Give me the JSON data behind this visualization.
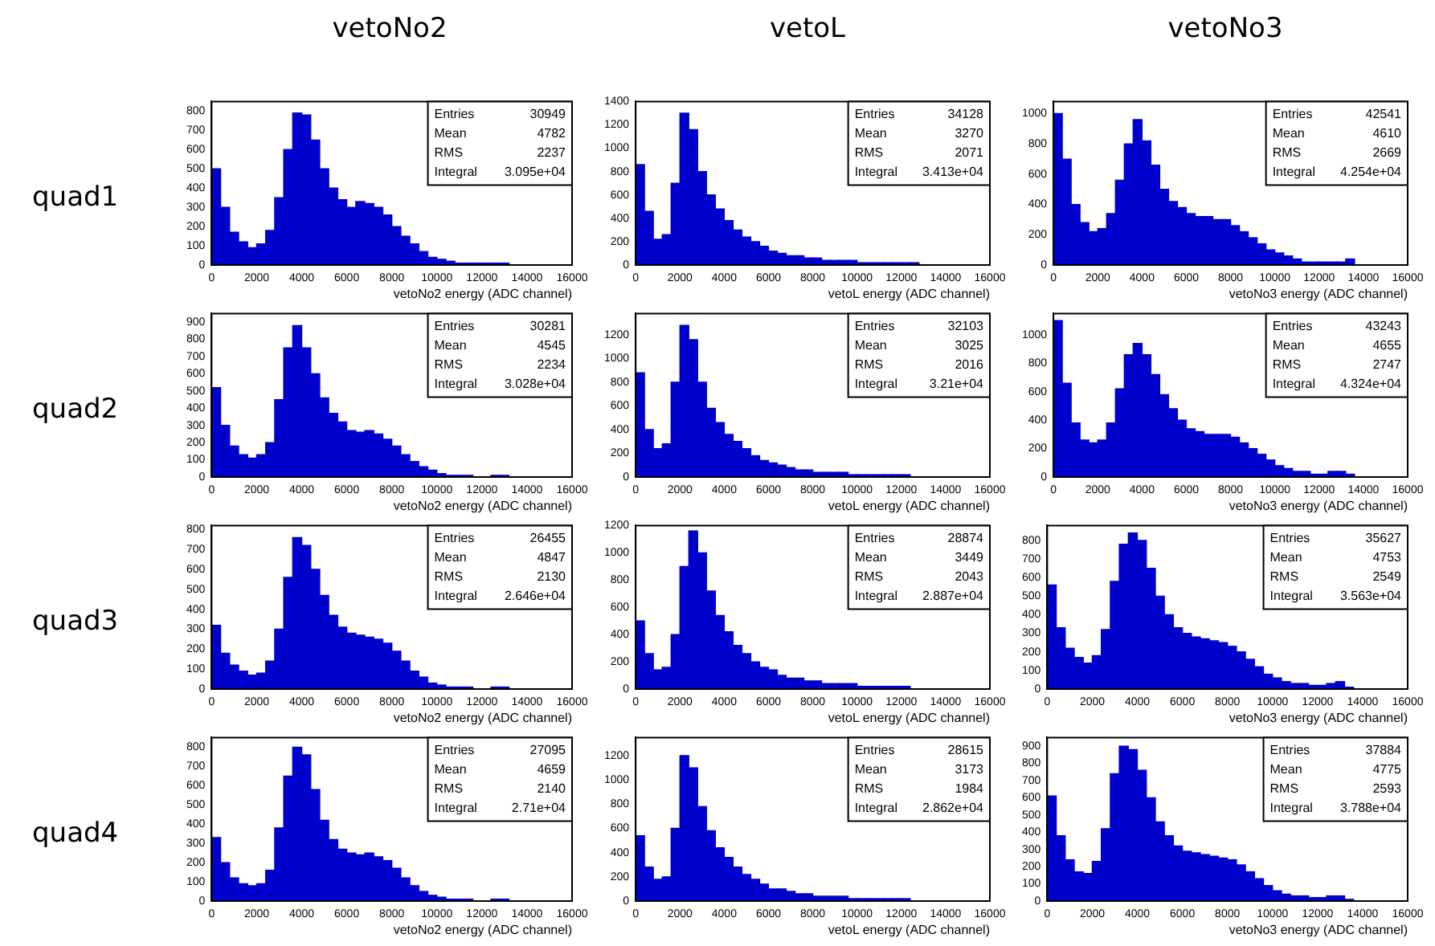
{
  "chart_data": [
    {
      "type": "histogram",
      "title": "vetoNo2",
      "ylabel": "quad1",
      "xlabel": "vetoNo2 energy (ADC channel)",
      "color": "#0000cc",
      "xlim": [
        0,
        16000
      ],
      "xticks": [
        0,
        2000,
        4000,
        6000,
        8000,
        10000,
        12000,
        14000,
        16000
      ],
      "ylim": [
        0,
        850
      ],
      "yticks": [
        0,
        100,
        200,
        300,
        400,
        500,
        600,
        700,
        800
      ],
      "grid": false,
      "legend": false,
      "annotations": [
        "Entries",
        "30949",
        "Mean",
        "4782",
        "RMS",
        "2237",
        "Integral",
        "3.095e+04"
      ],
      "bins": [
        0,
        400,
        800,
        1200,
        1600,
        2000,
        2400,
        2800,
        3200,
        3600,
        4000,
        4400,
        4800,
        5200,
        5600,
        6000,
        6400,
        6800,
        7200,
        7600,
        8000,
        8400,
        8800,
        9200,
        9600,
        10000,
        10400,
        10800,
        11200,
        11600,
        12000,
        12400,
        12800,
        13200,
        13600,
        14000
      ],
      "values": [
        500,
        300,
        170,
        120,
        90,
        110,
        180,
        350,
        600,
        790,
        780,
        650,
        500,
        400,
        340,
        300,
        330,
        320,
        300,
        260,
        200,
        150,
        110,
        70,
        40,
        30,
        20,
        10,
        10,
        10,
        10,
        10,
        10,
        0,
        0
      ]
    },
    {
      "type": "histogram",
      "title": "vetoL",
      "xlabel": "vetoL energy (ADC channel)",
      "color": "#0000cc",
      "xlim": [
        0,
        16000
      ],
      "xticks": [
        0,
        2000,
        4000,
        6000,
        8000,
        10000,
        12000,
        14000,
        16000
      ],
      "ylim": [
        0,
        1400
      ],
      "yticks": [
        0,
        200,
        400,
        600,
        800,
        1000,
        1200,
        1400
      ],
      "grid": false,
      "legend": false,
      "annotations": [
        "Entries",
        "34128",
        "Mean",
        "3270",
        "RMS",
        "2071",
        "Integral",
        "3.413e+04"
      ],
      "bins": [
        0,
        400,
        800,
        1200,
        1600,
        2000,
        2400,
        2800,
        3200,
        3600,
        4000,
        4400,
        4800,
        5200,
        5600,
        6000,
        6400,
        6800,
        7200,
        7600,
        8000,
        8400,
        8800,
        9200,
        9600,
        10000,
        10400,
        10800,
        11200,
        11600,
        12000,
        12400,
        12800,
        13200,
        13600,
        14000
      ],
      "values": [
        860,
        460,
        220,
        260,
        700,
        1300,
        1160,
        800,
        600,
        480,
        380,
        300,
        240,
        200,
        160,
        120,
        100,
        80,
        80,
        60,
        60,
        40,
        40,
        40,
        40,
        20,
        20,
        20,
        20,
        20,
        20,
        20,
        0,
        0,
        0
      ]
    },
    {
      "type": "histogram",
      "title": "vetoNo3",
      "xlabel": "vetoNo3 energy (ADC channel)",
      "color": "#0000cc",
      "xlim": [
        0,
        16000
      ],
      "xticks": [
        0,
        2000,
        4000,
        6000,
        8000,
        10000,
        12000,
        14000,
        16000
      ],
      "ylim": [
        0,
        1080
      ],
      "yticks": [
        0,
        200,
        400,
        600,
        800,
        1000
      ],
      "grid": false,
      "legend": false,
      "annotations": [
        "Entries",
        "42541",
        "Mean",
        "4610",
        "RMS",
        "2669",
        "Integral",
        "4.254e+04"
      ],
      "bins": [
        0,
        400,
        800,
        1200,
        1600,
        2000,
        2400,
        2800,
        3200,
        3600,
        4000,
        4400,
        4800,
        5200,
        5600,
        6000,
        6400,
        6800,
        7200,
        7600,
        8000,
        8400,
        8800,
        9200,
        9600,
        10000,
        10400,
        10800,
        11200,
        11600,
        12000,
        12400,
        12800,
        13200,
        13600,
        14000
      ],
      "values": [
        1000,
        700,
        400,
        280,
        220,
        240,
        340,
        560,
        800,
        960,
        820,
        660,
        500,
        420,
        380,
        340,
        320,
        320,
        300,
        300,
        260,
        220,
        180,
        140,
        100,
        80,
        60,
        40,
        20,
        20,
        20,
        20,
        20,
        40,
        0
      ]
    },
    {
      "type": "histogram",
      "ylabel": "quad2",
      "xlabel": "vetoNo2 energy (ADC channel)",
      "color": "#0000cc",
      "xlim": [
        0,
        16000
      ],
      "xticks": [
        0,
        2000,
        4000,
        6000,
        8000,
        10000,
        12000,
        14000,
        16000
      ],
      "ylim": [
        0,
        950
      ],
      "yticks": [
        0,
        100,
        200,
        300,
        400,
        500,
        600,
        700,
        800,
        900
      ],
      "grid": false,
      "legend": false,
      "annotations": [
        "Entries",
        "30281",
        "Mean",
        "4545",
        "RMS",
        "2234",
        "Integral",
        "3.028e+04"
      ],
      "bins": [
        0,
        400,
        800,
        1200,
        1600,
        2000,
        2400,
        2800,
        3200,
        3600,
        4000,
        4400,
        4800,
        5200,
        5600,
        6000,
        6400,
        6800,
        7200,
        7600,
        8000,
        8400,
        8800,
        9200,
        9600,
        10000,
        10400,
        10800,
        11200,
        11600,
        12000,
        12400,
        12800,
        13200,
        13600,
        14000
      ],
      "values": [
        520,
        300,
        180,
        130,
        110,
        130,
        200,
        450,
        750,
        880,
        750,
        600,
        460,
        370,
        320,
        270,
        260,
        270,
        250,
        220,
        180,
        130,
        90,
        60,
        40,
        20,
        10,
        10,
        10,
        0,
        0,
        10,
        10,
        0,
        0
      ]
    },
    {
      "type": "histogram",
      "xlabel": "vetoL energy (ADC channel)",
      "color": "#0000cc",
      "xlim": [
        0,
        16000
      ],
      "xticks": [
        0,
        2000,
        4000,
        6000,
        8000,
        10000,
        12000,
        14000,
        16000
      ],
      "ylim": [
        0,
        1380
      ],
      "yticks": [
        0,
        200,
        400,
        600,
        800,
        1000,
        1200
      ],
      "grid": false,
      "legend": false,
      "annotations": [
        "Entries",
        "32103",
        "Mean",
        "3025",
        "RMS",
        "2016",
        "Integral",
        "3.21e+04"
      ],
      "bins": [
        0,
        400,
        800,
        1200,
        1600,
        2000,
        2400,
        2800,
        3200,
        3600,
        4000,
        4400,
        4800,
        5200,
        5600,
        6000,
        6400,
        6800,
        7200,
        7600,
        8000,
        8400,
        8800,
        9200,
        9600,
        10000,
        10400,
        10800,
        11200,
        11600,
        12000,
        12400,
        12800,
        13200,
        13600,
        14000
      ],
      "values": [
        880,
        400,
        240,
        280,
        800,
        1280,
        1160,
        800,
        580,
        460,
        360,
        300,
        240,
        180,
        140,
        120,
        100,
        80,
        60,
        60,
        40,
        40,
        40,
        40,
        20,
        20,
        20,
        20,
        20,
        20,
        20,
        0,
        0,
        0,
        0
      ]
    },
    {
      "type": "histogram",
      "xlabel": "vetoNo3 energy (ADC channel)",
      "color": "#0000cc",
      "xlim": [
        0,
        16000
      ],
      "xticks": [
        0,
        2000,
        4000,
        6000,
        8000,
        10000,
        12000,
        14000,
        16000
      ],
      "ylim": [
        0,
        1150
      ],
      "yticks": [
        0,
        200,
        400,
        600,
        800,
        1000
      ],
      "grid": false,
      "legend": false,
      "annotations": [
        "Entries",
        "43243",
        "Mean",
        "4655",
        "RMS",
        "2747",
        "Integral",
        "4.324e+04"
      ],
      "bins": [
        0,
        400,
        800,
        1200,
        1600,
        2000,
        2400,
        2800,
        3200,
        3600,
        4000,
        4400,
        4800,
        5200,
        5600,
        6000,
        6400,
        6800,
        7200,
        7600,
        8000,
        8400,
        8800,
        9200,
        9600,
        10000,
        10400,
        10800,
        11200,
        11600,
        12000,
        12400,
        12800,
        13200,
        13600,
        14000
      ],
      "values": [
        1100,
        660,
        380,
        260,
        240,
        260,
        380,
        620,
        860,
        940,
        860,
        720,
        580,
        480,
        400,
        340,
        320,
        300,
        300,
        300,
        280,
        240,
        200,
        160,
        120,
        80,
        60,
        40,
        40,
        20,
        20,
        40,
        40,
        20,
        0
      ]
    },
    {
      "type": "histogram",
      "ylabel": "quad3",
      "xlabel": "vetoNo2 energy (ADC channel)",
      "color": "#0000cc",
      "xlim": [
        0,
        16000
      ],
      "xticks": [
        0,
        2000,
        4000,
        6000,
        8000,
        10000,
        12000,
        14000,
        16000
      ],
      "ylim": [
        0,
        820
      ],
      "yticks": [
        0,
        100,
        200,
        300,
        400,
        500,
        600,
        700,
        800
      ],
      "grid": false,
      "legend": false,
      "annotations": [
        "Entries",
        "26455",
        "Mean",
        "4847",
        "RMS",
        "2130",
        "Integral",
        "2.646e+04"
      ],
      "bins": [
        0,
        400,
        800,
        1200,
        1600,
        2000,
        2400,
        2800,
        3200,
        3600,
        4000,
        4400,
        4800,
        5200,
        5600,
        6000,
        6400,
        6800,
        7200,
        7600,
        8000,
        8400,
        8800,
        9200,
        9600,
        10000,
        10400,
        10800,
        11200,
        11600,
        12000,
        12400,
        12800,
        13200,
        13600,
        14000
      ],
      "values": [
        320,
        180,
        120,
        90,
        70,
        80,
        140,
        300,
        560,
        760,
        720,
        600,
        470,
        370,
        310,
        280,
        270,
        260,
        250,
        230,
        190,
        140,
        90,
        60,
        30,
        20,
        10,
        10,
        10,
        0,
        0,
        10,
        10,
        0,
        0
      ]
    },
    {
      "type": "histogram",
      "xlabel": "vetoL energy (ADC channel)",
      "color": "#0000cc",
      "xlim": [
        0,
        16000
      ],
      "xticks": [
        0,
        2000,
        4000,
        6000,
        8000,
        10000,
        12000,
        14000,
        16000
      ],
      "ylim": [
        0,
        1200
      ],
      "yticks": [
        0,
        200,
        400,
        600,
        800,
        1000,
        1200
      ],
      "grid": false,
      "legend": false,
      "annotations": [
        "Entries",
        "28874",
        "Mean",
        "3449",
        "RMS",
        "2043",
        "Integral",
        "2.887e+04"
      ],
      "bins": [
        0,
        400,
        800,
        1200,
        1600,
        2000,
        2400,
        2800,
        3200,
        3600,
        4000,
        4400,
        4800,
        5200,
        5600,
        6000,
        6400,
        6800,
        7200,
        7600,
        8000,
        8400,
        8800,
        9200,
        9600,
        10000,
        10400,
        10800,
        11200,
        11600,
        12000,
        12400,
        12800,
        13200,
        13600,
        14000
      ],
      "values": [
        500,
        260,
        140,
        160,
        400,
        900,
        1160,
        1000,
        720,
        540,
        420,
        320,
        260,
        200,
        160,
        140,
        100,
        80,
        80,
        60,
        60,
        40,
        40,
        40,
        40,
        20,
        20,
        20,
        20,
        20,
        20,
        0,
        0,
        0,
        0
      ]
    },
    {
      "type": "histogram",
      "xlabel": "vetoNo3 energy (ADC channel)",
      "color": "#0000cc",
      "xlim": [
        0,
        16000
      ],
      "xticks": [
        0,
        2000,
        4000,
        6000,
        8000,
        10000,
        12000,
        14000,
        16000
      ],
      "ylim": [
        0,
        880
      ],
      "yticks": [
        0,
        100,
        200,
        300,
        400,
        500,
        600,
        700,
        800
      ],
      "grid": false,
      "legend": false,
      "annotations": [
        "Entries",
        "35627",
        "Mean",
        "4753",
        "RMS",
        "2549",
        "Integral",
        "3.563e+04"
      ],
      "bins": [
        0,
        400,
        800,
        1200,
        1600,
        2000,
        2400,
        2800,
        3200,
        3600,
        4000,
        4400,
        4800,
        5200,
        5600,
        6000,
        6400,
        6800,
        7200,
        7600,
        8000,
        8400,
        8800,
        9200,
        9600,
        10000,
        10400,
        10800,
        11200,
        11600,
        12000,
        12400,
        12800,
        13200,
        13600,
        14000
      ],
      "values": [
        560,
        330,
        220,
        170,
        140,
        180,
        320,
        580,
        780,
        840,
        800,
        650,
        500,
        400,
        330,
        300,
        280,
        270,
        260,
        250,
        230,
        200,
        160,
        120,
        80,
        60,
        40,
        30,
        30,
        20,
        20,
        30,
        40,
        10,
        0
      ]
    },
    {
      "type": "histogram",
      "ylabel": "quad4",
      "xlabel": "vetoNo2 energy (ADC channel)",
      "color": "#0000cc",
      "xlim": [
        0,
        16000
      ],
      "xticks": [
        0,
        2000,
        4000,
        6000,
        8000,
        10000,
        12000,
        14000,
        16000
      ],
      "ylim": [
        0,
        850
      ],
      "yticks": [
        0,
        100,
        200,
        300,
        400,
        500,
        600,
        700,
        800
      ],
      "grid": false,
      "legend": false,
      "annotations": [
        "Entries",
        "27095",
        "Mean",
        "4659",
        "RMS",
        "2140",
        "Integral",
        "2.71e+04"
      ],
      "bins": [
        0,
        400,
        800,
        1200,
        1600,
        2000,
        2400,
        2800,
        3200,
        3600,
        4000,
        4400,
        4800,
        5200,
        5600,
        6000,
        6400,
        6800,
        7200,
        7600,
        8000,
        8400,
        8800,
        9200,
        9600,
        10000,
        10400,
        10800,
        11200,
        11600,
        12000,
        12400,
        12800,
        13200,
        13600,
        14000
      ],
      "values": [
        330,
        200,
        120,
        90,
        80,
        90,
        160,
        380,
        650,
        800,
        760,
        580,
        420,
        320,
        270,
        250,
        240,
        250,
        230,
        210,
        170,
        120,
        80,
        50,
        30,
        20,
        10,
        10,
        10,
        0,
        0,
        10,
        10,
        0,
        0
      ]
    },
    {
      "type": "histogram",
      "xlabel": "vetoL energy (ADC channel)",
      "color": "#0000cc",
      "xlim": [
        0,
        16000
      ],
      "xticks": [
        0,
        2000,
        4000,
        6000,
        8000,
        10000,
        12000,
        14000,
        16000
      ],
      "ylim": [
        0,
        1350
      ],
      "yticks": [
        0,
        200,
        400,
        600,
        800,
        1000,
        1200
      ],
      "grid": false,
      "legend": false,
      "annotations": [
        "Entries",
        "28615",
        "Mean",
        "3173",
        "RMS",
        "1984",
        "Integral",
        "2.862e+04"
      ],
      "bins": [
        0,
        400,
        800,
        1200,
        1600,
        2000,
        2400,
        2800,
        3200,
        3600,
        4000,
        4400,
        4800,
        5200,
        5600,
        6000,
        6400,
        6800,
        7200,
        7600,
        8000,
        8400,
        8800,
        9200,
        9600,
        10000,
        10400,
        10800,
        11200,
        11600,
        12000,
        12400,
        12800,
        13200,
        13600,
        14000
      ],
      "values": [
        540,
        280,
        180,
        200,
        600,
        1200,
        1100,
        780,
        580,
        440,
        360,
        280,
        220,
        180,
        140,
        100,
        100,
        80,
        60,
        60,
        40,
        40,
        40,
        40,
        20,
        20,
        20,
        20,
        20,
        20,
        20,
        0,
        0,
        0,
        0
      ]
    },
    {
      "type": "histogram",
      "xlabel": "vetoNo3 energy (ADC channel)",
      "color": "#0000cc",
      "xlim": [
        0,
        16000
      ],
      "xticks": [
        0,
        2000,
        4000,
        6000,
        8000,
        10000,
        12000,
        14000,
        16000
      ],
      "ylim": [
        0,
        950
      ],
      "yticks": [
        0,
        100,
        200,
        300,
        400,
        500,
        600,
        700,
        800,
        900
      ],
      "grid": false,
      "legend": false,
      "annotations": [
        "Entries",
        "37884",
        "Mean",
        "4775",
        "RMS",
        "2593",
        "Integral",
        "3.788e+04"
      ],
      "bins": [
        0,
        400,
        800,
        1200,
        1600,
        2000,
        2400,
        2800,
        3200,
        3600,
        4000,
        4400,
        4800,
        5200,
        5600,
        6000,
        6400,
        6800,
        7200,
        7600,
        8000,
        8400,
        8800,
        9200,
        9600,
        10000,
        10400,
        10800,
        11200,
        11600,
        12000,
        12400,
        12800,
        13200,
        13600,
        14000
      ],
      "values": [
        610,
        380,
        240,
        170,
        160,
        230,
        420,
        740,
        900,
        880,
        760,
        600,
        460,
        380,
        320,
        290,
        280,
        270,
        260,
        250,
        240,
        210,
        170,
        130,
        90,
        60,
        40,
        30,
        30,
        20,
        20,
        30,
        30,
        10,
        0
      ]
    }
  ]
}
